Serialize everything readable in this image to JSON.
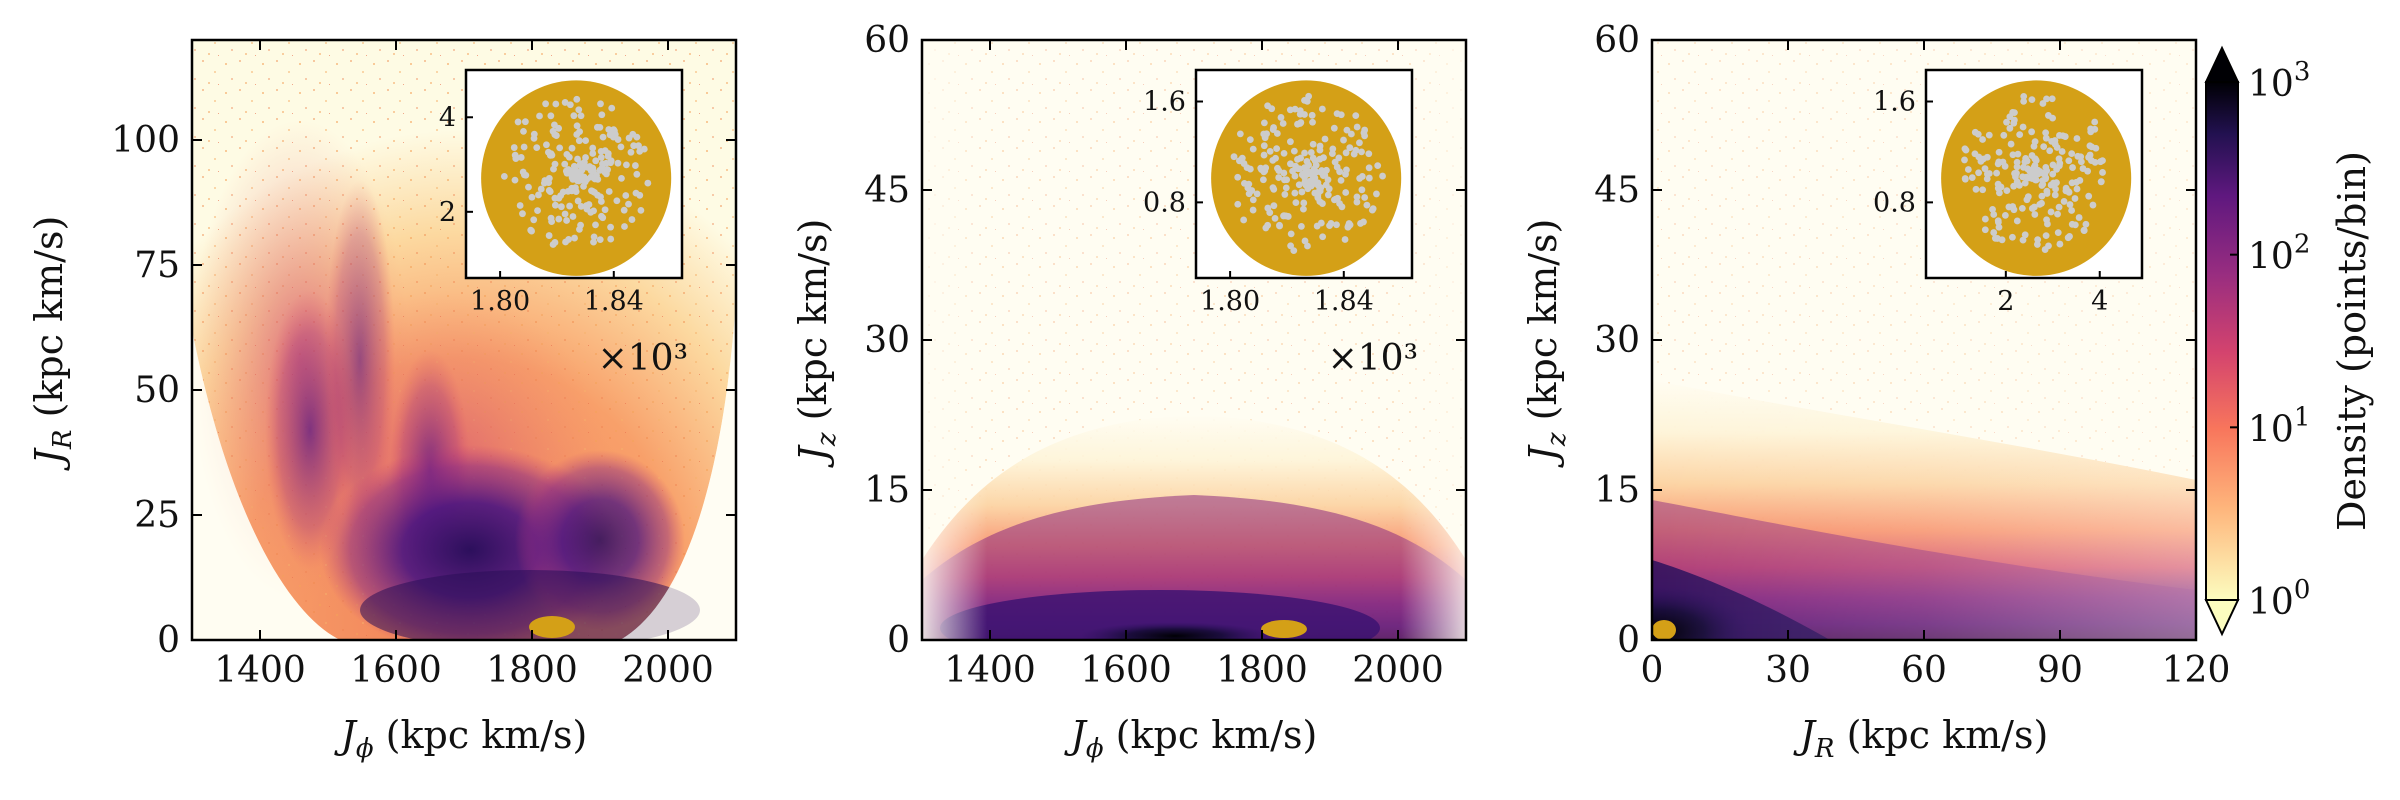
{
  "chart_data": [
    {
      "type": "heatmap",
      "panel": "left",
      "x_label": "J",
      "x_sub": "ϕ",
      "x_unit": "(kpc km/s)",
      "y_label": "J",
      "y_sub": "R",
      "y_unit": "(kpc km/s)",
      "xlim": [
        1300,
        2100
      ],
      "ylim": [
        0,
        120
      ],
      "x_ticks": [
        1400,
        1600,
        1800,
        2000
      ],
      "x_tick_labels": [
        "1400",
        "1600",
        "1800",
        "2000"
      ],
      "y_ticks": [
        0,
        25,
        50,
        75,
        100
      ],
      "y_tick_labels": [
        "0",
        "25",
        "50",
        "75",
        "100"
      ],
      "highlight_cluster": {
        "x_center": 1840,
        "y_center": 2.8,
        "color": "#d4a017"
      },
      "inset": {
        "x_tick_labels": [
          "1.80",
          "1.84"
        ],
        "x_ticks": [
          1.8,
          1.84
        ],
        "xlim": [
          1.788,
          1.864
        ],
        "y_tick_labels": [
          "2",
          "4"
        ],
        "y_ticks": [
          2,
          4
        ],
        "ylim": [
          0.6,
          5.0
        ],
        "multiplier": "×10³",
        "outer_color": "#d4a017",
        "inner_color": "#cccccc"
      }
    },
    {
      "type": "heatmap",
      "panel": "middle",
      "x_label": "J",
      "x_sub": "ϕ",
      "x_unit": "(kpc km/s)",
      "y_label": "J",
      "y_sub": "z",
      "y_unit": "(kpc km/s)",
      "xlim": [
        1300,
        2100
      ],
      "ylim": [
        0,
        60
      ],
      "x_ticks": [
        1400,
        1600,
        1800,
        2000
      ],
      "x_tick_labels": [
        "1400",
        "1600",
        "1800",
        "2000"
      ],
      "y_ticks": [
        0,
        15,
        30,
        45,
        60
      ],
      "y_tick_labels": [
        "0",
        "15",
        "30",
        "45",
        "60"
      ],
      "highlight_cluster": {
        "x_center": 1840,
        "y_center": 1.2,
        "color": "#d4a017"
      },
      "inset": {
        "x_tick_labels": [
          "1.80",
          "1.84"
        ],
        "x_ticks": [
          1.8,
          1.84
        ],
        "xlim": [
          1.788,
          1.864
        ],
        "y_tick_labels": [
          "0.8",
          "1.6"
        ],
        "y_ticks": [
          0.8,
          1.6
        ],
        "ylim": [
          0.2,
          1.85
        ],
        "multiplier": "×10³",
        "outer_color": "#d4a017",
        "inner_color": "#cccccc"
      }
    },
    {
      "type": "heatmap",
      "panel": "right",
      "x_label": "J",
      "x_sub": "R",
      "x_unit": "(kpc km/s)",
      "y_label": "J",
      "y_sub": "z",
      "y_unit": "(kpc km/s)",
      "xlim": [
        0,
        120
      ],
      "ylim": [
        0,
        60
      ],
      "x_ticks": [
        0,
        30,
        60,
        90,
        120
      ],
      "x_tick_labels": [
        "0",
        "30",
        "60",
        "90",
        "120"
      ],
      "y_ticks": [
        0,
        15,
        30,
        45,
        60
      ],
      "y_tick_labels": [
        "0",
        "15",
        "30",
        "45",
        "60"
      ],
      "highlight_cluster": {
        "x_center": 2.8,
        "y_center": 1.2,
        "color": "#d4a017"
      },
      "inset": {
        "x_tick_labels": [
          "2",
          "4"
        ],
        "x_ticks": [
          2,
          4
        ],
        "xlim": [
          0.3,
          4.9
        ],
        "y_tick_labels": [
          "0.8",
          "1.6"
        ],
        "y_ticks": [
          0.8,
          1.6
        ],
        "ylim": [
          0.2,
          1.85
        ],
        "multiplier": "",
        "outer_color": "#d4a017",
        "inner_color": "#cccccc"
      }
    }
  ],
  "colorbar": {
    "label": "Density (points/bin)",
    "scale": "log",
    "colormap": "magma_r",
    "tick_base": "10",
    "tick_exponents": [
      "0",
      "1",
      "2",
      "3"
    ],
    "extend": "both"
  }
}
